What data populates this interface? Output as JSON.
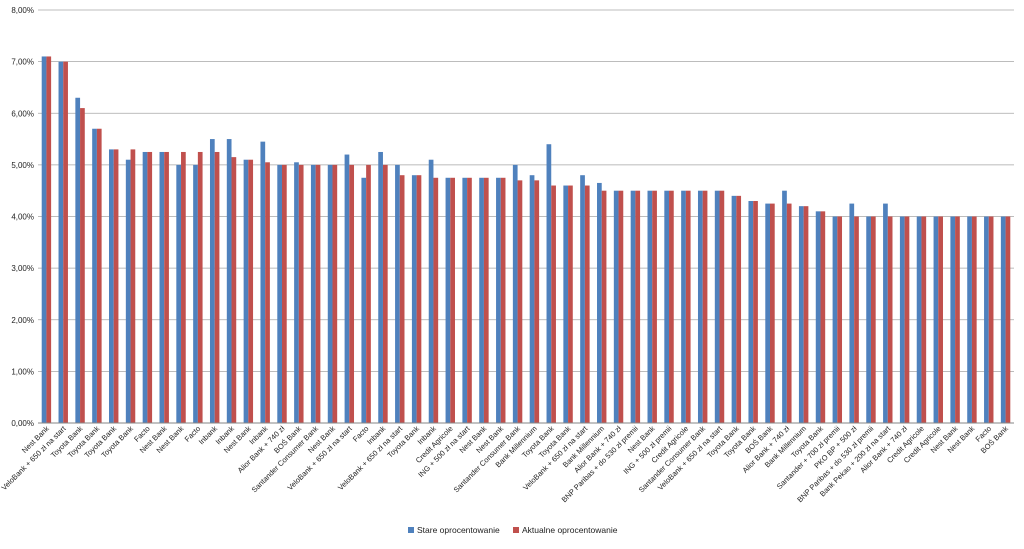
{
  "chart_data": {
    "type": "bar",
    "title": "",
    "xlabel": "",
    "ylabel": "",
    "ylim": [
      0,
      8
    ],
    "y_tick_step": 1,
    "y_tick_labels": [
      "0,00%",
      "1,00%",
      "2,00%",
      "3,00%",
      "4,00%",
      "5,00%",
      "6,00%",
      "7,00%",
      "8,00%"
    ],
    "grid": true,
    "legend_position": "bottom",
    "categories": [
      "Nest Bank",
      "VeloBank + 650 zł na start",
      "Toyota Bank",
      "Toyota Bank",
      "Toyota Bank",
      "Toyota Bank",
      "Facto",
      "Nest Bank",
      "Nest Bank",
      "Facto",
      "Inbank",
      "Inbank",
      "Nest Bank",
      "Inbank",
      "Alior Bank + 740 zł",
      "BOŚ Bank",
      "Santander Consumer Bank",
      "Nest Bank",
      "VeloBank + 650 zł na start",
      "Facto",
      "Inbank",
      "VeloBank + 650 zł na start",
      "Toyota Bank",
      "Inbank",
      "Credit Agricole",
      "ING + 500 zł na start",
      "Nest Bank",
      "Nest Bank",
      "Santander Consumer Bank",
      "Bank Millennium",
      "Toyota Bank",
      "Toyota Bank",
      "VeloBank + 650 zł na start",
      "Bank Millennium",
      "Alior Bank + 740 zł",
      "BNP Paribas + do 530 zł premii",
      "Nest Bank",
      "ING + 500 zł premii",
      "Credit Agricole",
      "Santander Consumer Bank",
      "VeloBank + 650 zł na start",
      "Toyota Bank",
      "Toyota Bank",
      "BOŚ Bank",
      "Alior Bank + 740 zł",
      "Bank Millennium",
      "Toyota Bank",
      "Santander + 700 zł premii",
      "PKO BP + 500 zł",
      "BNP Paribas + do 530 zł premii",
      "Bank Pekao + 200 zł na start",
      "Alior Bank + 740 zł",
      "Credit Agricole",
      "Credit Agricole",
      "Nest Bank",
      "Nest Bank",
      "Facto",
      "BOŚ Bank"
    ],
    "series": [
      {
        "name": "Stare oprocentowanie",
        "color": "#4f81bd",
        "values": [
          7.1,
          7.0,
          6.3,
          5.7,
          5.3,
          5.1,
          5.25,
          5.25,
          5.0,
          5.0,
          5.5,
          5.5,
          5.1,
          5.45,
          5.0,
          5.05,
          5.0,
          5.0,
          5.2,
          4.75,
          5.25,
          5.0,
          4.8,
          5.1,
          4.75,
          4.75,
          4.75,
          4.75,
          5.0,
          4.8,
          5.4,
          4.6,
          4.8,
          4.65,
          4.5,
          4.5,
          4.5,
          4.5,
          4.5,
          4.5,
          4.5,
          4.4,
          4.3,
          4.25,
          4.5,
          4.2,
          4.1,
          4.0,
          4.25,
          4.0,
          4.25,
          4.0,
          4.0,
          4.0,
          4.0,
          4.0,
          4.0,
          4.0
        ]
      },
      {
        "name": "Aktualne oprocentowanie",
        "color": "#c0504d",
        "values": [
          7.1,
          7.0,
          6.1,
          5.7,
          5.3,
          5.3,
          5.25,
          5.25,
          5.25,
          5.25,
          5.25,
          5.15,
          5.1,
          5.05,
          5.0,
          5.0,
          5.0,
          5.0,
          5.0,
          5.0,
          5.0,
          4.8,
          4.8,
          4.75,
          4.75,
          4.75,
          4.75,
          4.75,
          4.7,
          4.7,
          4.6,
          4.6,
          4.6,
          4.5,
          4.5,
          4.5,
          4.5,
          4.5,
          4.5,
          4.5,
          4.5,
          4.4,
          4.3,
          4.25,
          4.25,
          4.2,
          4.1,
          4.0,
          4.0,
          4.0,
          4.0,
          4.0,
          4.0,
          4.0,
          4.0,
          4.0,
          4.0,
          4.0
        ]
      }
    ]
  }
}
